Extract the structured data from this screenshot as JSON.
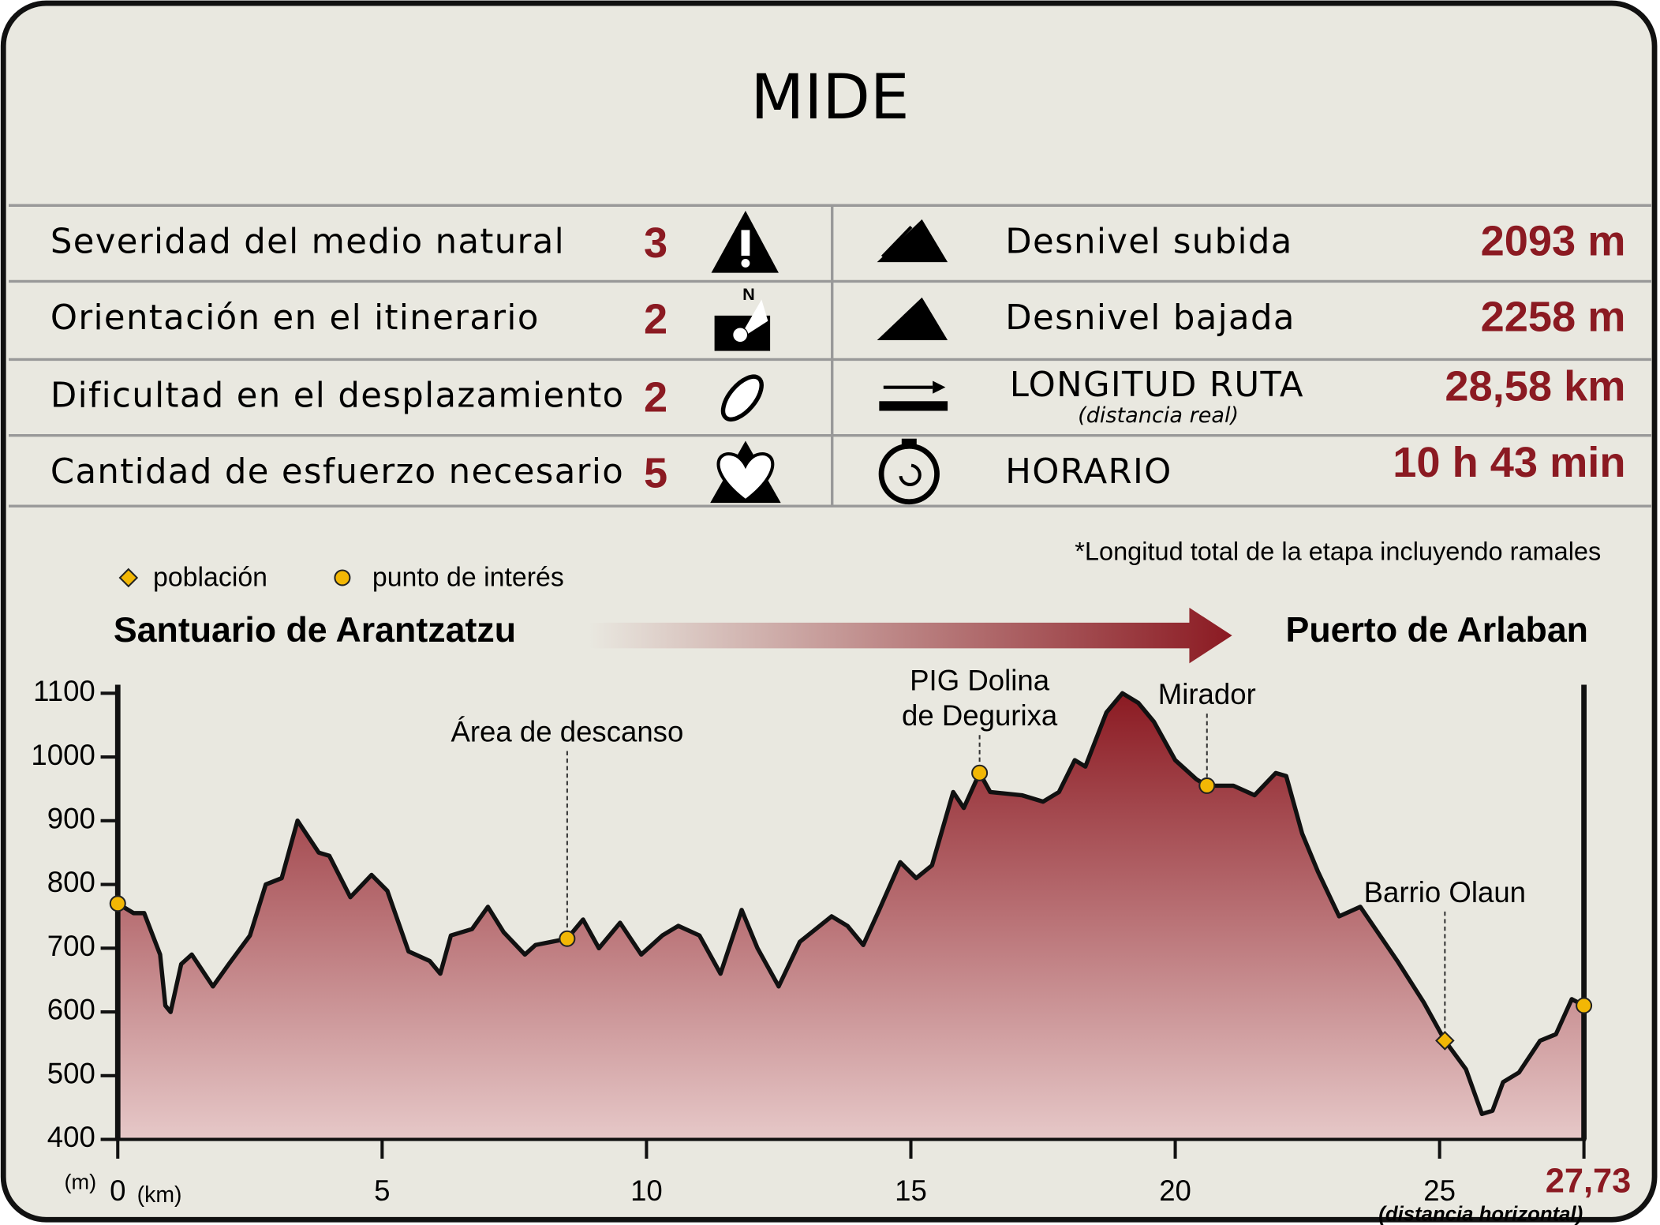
{
  "title": "MIDE",
  "mide_left": [
    {
      "label": "Severidad del medio natural",
      "value": 3
    },
    {
      "label": "Orientación en el itinerario",
      "value": 2
    },
    {
      "label": "Dificultad en el desplazamiento",
      "value": 2
    },
    {
      "label": "Cantidad de esfuerzo necesario",
      "value": 5
    }
  ],
  "mide_right": [
    {
      "label": "Desnivel subida",
      "value": "2093 m"
    },
    {
      "label": "Desnivel bajada",
      "value": "2258 m"
    },
    {
      "label": "LONGITUD RUTA",
      "note": "(distancia real)",
      "value": "28,58 km"
    },
    {
      "label": "HORARIO",
      "value": "10 h 43 min"
    }
  ],
  "chart_data": {
    "type": "area",
    "note": "*Longitud total de la etapa incluyendo ramales",
    "legend": [
      {
        "label": "población",
        "symbol": "diamond"
      },
      {
        "label": "punto de interés",
        "symbol": "circle"
      }
    ],
    "route": {
      "from": "Santuario de Arantzatzu",
      "to": "Puerto de Arlaban"
    },
    "color": "#8b1a22",
    "x": [
      0,
      0.3,
      0.5,
      0.8,
      0.9,
      1.0,
      1.2,
      1.4,
      1.8,
      2.1,
      2.5,
      2.8,
      3.1,
      3.4,
      3.8,
      4.0,
      4.4,
      4.8,
      5.1,
      5.5,
      5.9,
      6.1,
      6.3,
      6.7,
      7.0,
      7.3,
      7.7,
      7.9,
      8.5,
      8.8,
      9.1,
      9.5,
      9.9,
      10.3,
      10.6,
      11.0,
      11.4,
      11.8,
      12.1,
      12.5,
      12.9,
      13.5,
      13.8,
      14.1,
      14.4,
      14.8,
      15.1,
      15.4,
      15.8,
      16.0,
      16.3,
      16.5,
      17.1,
      17.5,
      17.8,
      18.1,
      18.3,
      18.7,
      19.0,
      19.3,
      19.6,
      20.0,
      20.4,
      20.6,
      21.1,
      21.5,
      21.9,
      22.1,
      22.4,
      22.7,
      23.1,
      23.5,
      24.2,
      24.7,
      25.1,
      25.5,
      25.8,
      26.0,
      26.2,
      26.5,
      26.9,
      27.2,
      27.5,
      27.73
    ],
    "values": [
      770,
      755,
      755,
      690,
      610,
      600,
      675,
      690,
      640,
      675,
      720,
      800,
      810,
      900,
      850,
      845,
      780,
      815,
      790,
      695,
      680,
      660,
      720,
      730,
      765,
      725,
      690,
      705,
      715,
      745,
      700,
      740,
      690,
      720,
      735,
      720,
      660,
      760,
      700,
      640,
      710,
      750,
      735,
      705,
      760,
      835,
      810,
      830,
      945,
      920,
      975,
      945,
      940,
      930,
      945,
      995,
      985,
      1070,
      1100,
      1085,
      1055,
      995,
      965,
      955,
      955,
      940,
      975,
      970,
      880,
      820,
      750,
      765,
      680,
      615,
      555,
      510,
      440,
      445,
      490,
      505,
      555,
      565,
      620,
      610
    ],
    "markers": [
      {
        "x": 0,
        "y": 770,
        "symbol": "circle"
      },
      {
        "x": 8.5,
        "y": 715,
        "symbol": "circle",
        "label": [
          "Área de descanso"
        ]
      },
      {
        "x": 16.3,
        "y": 975,
        "symbol": "circle",
        "label": [
          "PIG Dolina",
          "de Degurixa"
        ]
      },
      {
        "x": 20.6,
        "y": 955,
        "symbol": "circle",
        "label": [
          "Mirador"
        ]
      },
      {
        "x": 25.1,
        "y": 555,
        "symbol": "diamond",
        "label": [
          "Barrio Olaun"
        ]
      },
      {
        "x": 27.73,
        "y": 610,
        "symbol": "circle"
      }
    ],
    "xlim": [
      0,
      27.73
    ],
    "xticks": [
      0,
      5,
      10,
      15,
      20,
      25,
      {
        "value": 27.73,
        "label": "27,73"
      }
    ],
    "ylim": [
      400,
      1100
    ],
    "yticks": [
      400,
      500,
      600,
      700,
      800,
      900,
      1000,
      1100
    ],
    "y_unit": "(m)",
    "x_unit": "(km)",
    "x_label": "(distancia horizontal)"
  }
}
